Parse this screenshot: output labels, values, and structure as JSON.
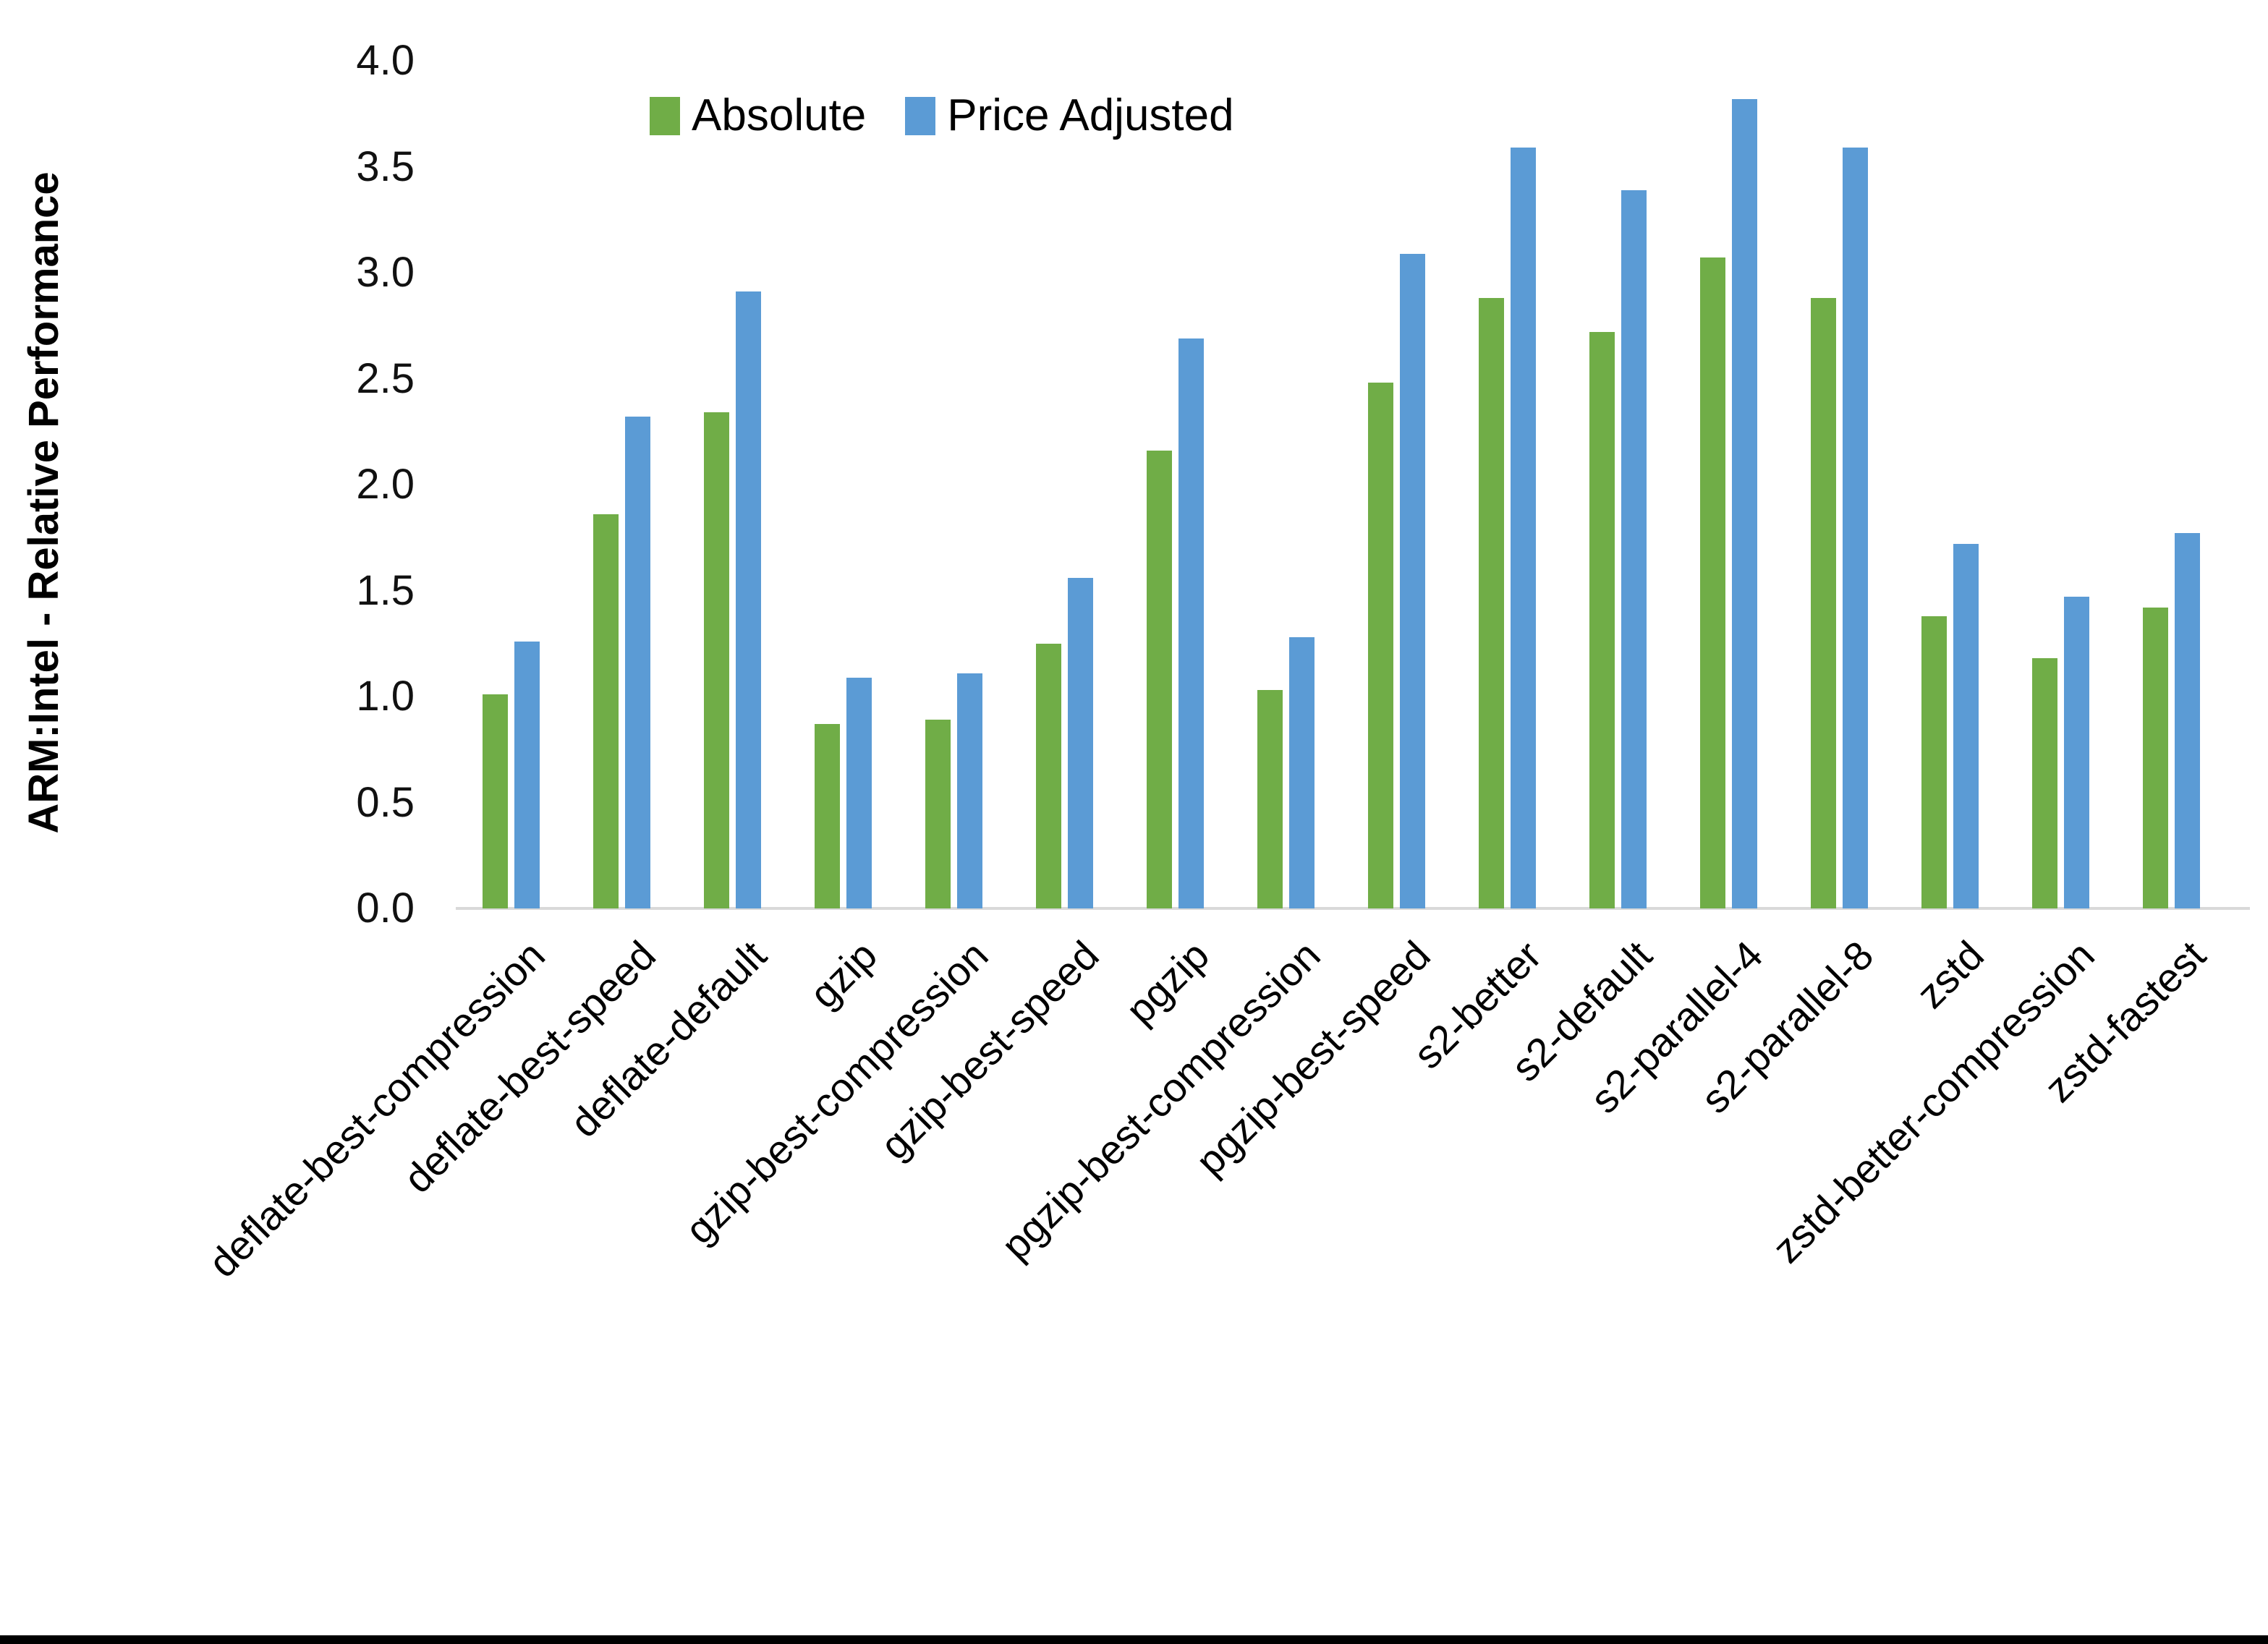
{
  "chart_data": {
    "type": "bar",
    "title": "",
    "ylabel": "ARM:Intel - Relative Performance",
    "xlabel": "",
    "ylim": [
      0.0,
      4.0
    ],
    "y_tick_labels": [
      "0.0",
      "0.5",
      "1.0",
      "1.5",
      "2.0",
      "2.5",
      "3.0",
      "3.5",
      "4.0"
    ],
    "grid": false,
    "legend_position": "top-center",
    "axis_line_color": "#d9d9d9",
    "categories": [
      "deflate-best-compression",
      "deflate-best-speed",
      "deflate-default",
      "gzip",
      "gzip-best-compression",
      "gzip-best-speed",
      "pgzip",
      "pgzip-best-compression",
      "pgzip-best-speed",
      "s2-better",
      "s2-default",
      "s2-parallel-4",
      "s2-parallel-8",
      "zstd",
      "zstd-better-compression",
      "zstd-fastest"
    ],
    "series": [
      {
        "name": "Absolute",
        "color": "#70AD47",
        "values": [
          1.01,
          1.86,
          2.34,
          0.87,
          0.89,
          1.25,
          2.16,
          1.03,
          2.48,
          2.88,
          2.72,
          3.07,
          2.88,
          1.38,
          1.18,
          1.42
        ]
      },
      {
        "name": "Price Adjusted",
        "color": "#5B9BD5",
        "values": [
          1.26,
          2.32,
          2.91,
          1.09,
          1.11,
          1.56,
          2.69,
          1.28,
          3.09,
          3.59,
          3.39,
          3.82,
          3.59,
          1.72,
          1.47,
          1.77
        ]
      }
    ]
  }
}
